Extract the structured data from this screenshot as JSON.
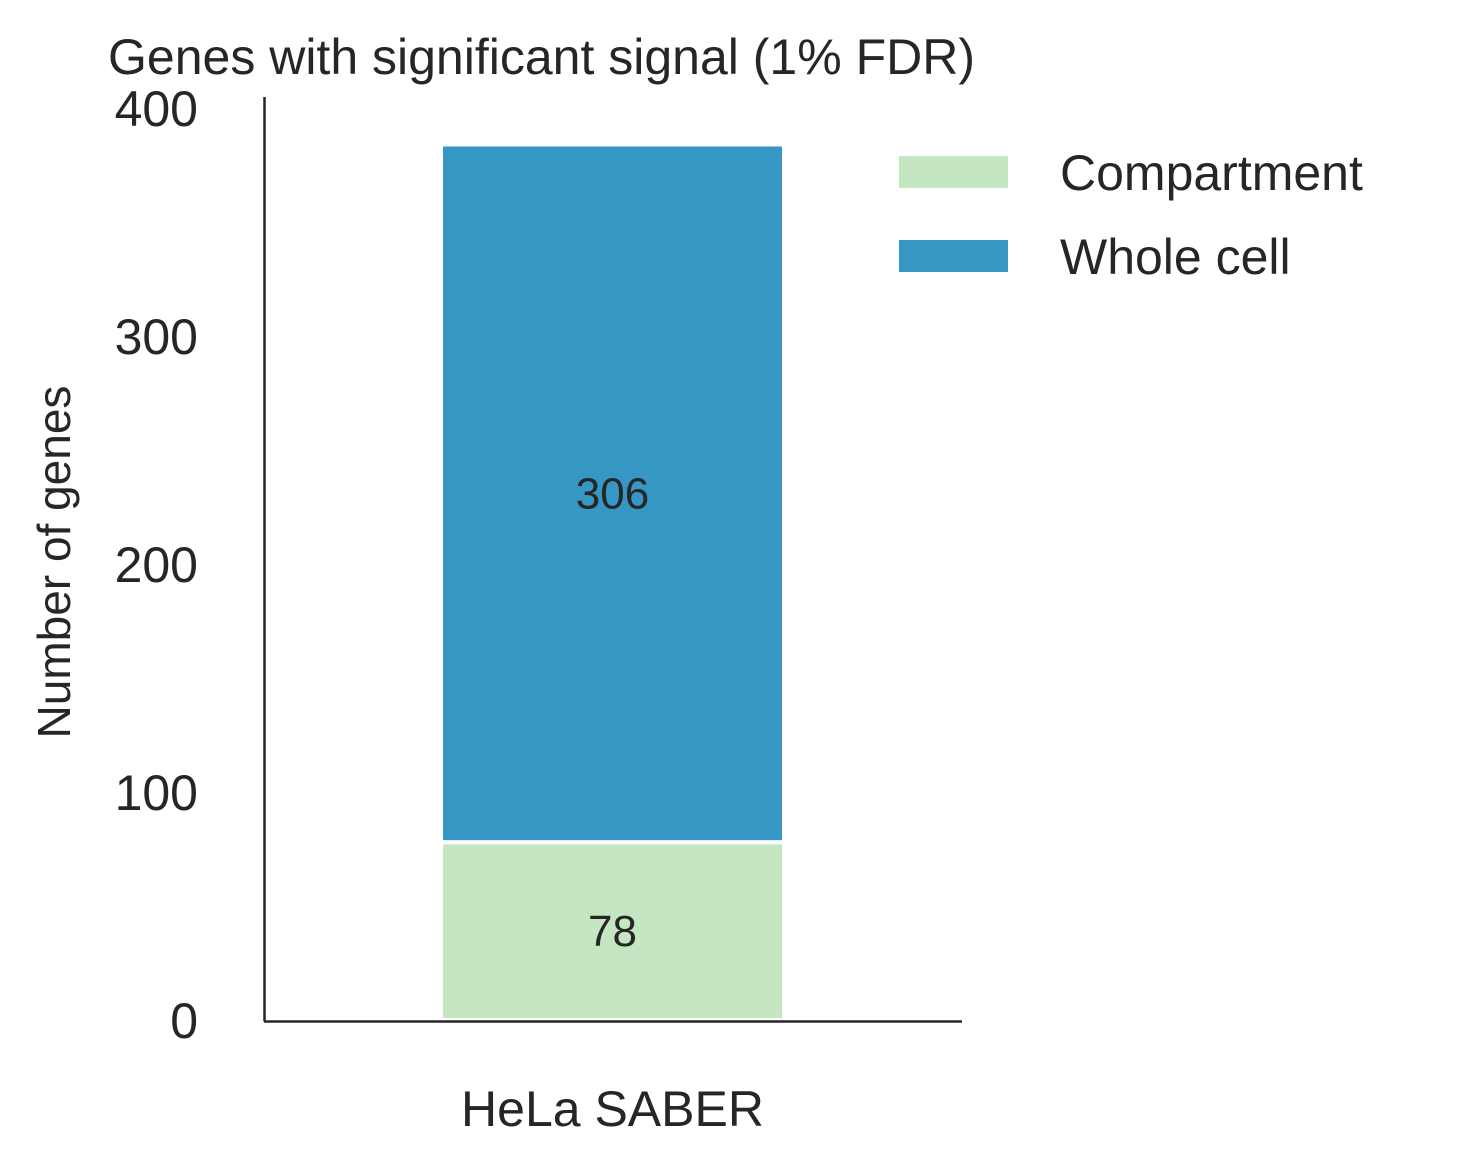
{
  "chart_data": {
    "type": "bar",
    "stacked": true,
    "title": "Genes with significant signal (1% FDR)",
    "xlabel": "",
    "ylabel": "Number of genes",
    "categories": [
      "HeLa SABER"
    ],
    "series": [
      {
        "name": "Compartment",
        "values": [
          78
        ],
        "color": "#c4e6c1"
      },
      {
        "name": "Whole cell",
        "values": [
          306
        ],
        "color": "#3797c4"
      }
    ],
    "ylim": [
      0,
      400
    ],
    "yticks": [
      0,
      100,
      200,
      300,
      400
    ],
    "ytick_labels": [
      "0",
      "100",
      "200",
      "300",
      "400"
    ],
    "data_labels": [
      "78",
      "306"
    ],
    "grid": false,
    "legend_position": "upper-right-outside"
  }
}
